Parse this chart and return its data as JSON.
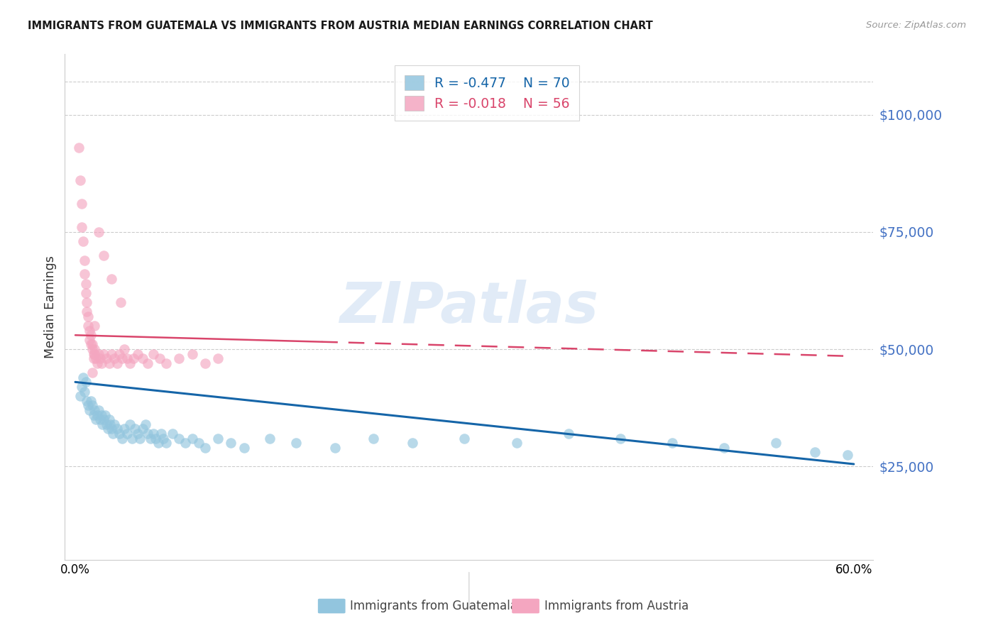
{
  "title": "IMMIGRANTS FROM GUATEMALA VS IMMIGRANTS FROM AUSTRIA MEDIAN EARNINGS CORRELATION CHART",
  "source": "Source: ZipAtlas.com",
  "ylabel": "Median Earnings",
  "ytick_vals": [
    25000,
    50000,
    75000,
    100000
  ],
  "ytick_labels": [
    "$25,000",
    "$50,000",
    "$75,000",
    "$100,000"
  ],
  "xlim": [
    -0.008,
    0.615
  ],
  "ylim": [
    5000,
    113000
  ],
  "watermark": "ZIPatlas",
  "legend_r1": "-0.477",
  "legend_n1": "70",
  "legend_r2": "-0.018",
  "legend_n2": "56",
  "color_guatemala": "#92c5de",
  "color_austria": "#f4a6c0",
  "color_trend_guatemala": "#1565a8",
  "color_trend_austria": "#d9456b",
  "label_guatemala": "Immigrants from Guatemala",
  "label_austria": "Immigrants from Austria",
  "guat_trend_x": [
    0.0,
    0.6
  ],
  "guat_trend_y": [
    43000,
    25500
  ],
  "aust_trend_x": [
    0.0,
    0.6
  ],
  "aust_trend_y": [
    53000,
    48500
  ],
  "background_color": "#ffffff",
  "grid_color": "#cccccc",
  "axis_label_color": "#4472c4",
  "title_color": "#1a1a1a",
  "scatter_alpha": 0.65,
  "scatter_size": 110,
  "guat_x": [
    0.004,
    0.005,
    0.006,
    0.007,
    0.008,
    0.009,
    0.01,
    0.011,
    0.012,
    0.013,
    0.014,
    0.015,
    0.016,
    0.017,
    0.018,
    0.019,
    0.02,
    0.021,
    0.022,
    0.023,
    0.024,
    0.025,
    0.026,
    0.027,
    0.028,
    0.029,
    0.03,
    0.032,
    0.034,
    0.036,
    0.038,
    0.04,
    0.042,
    0.044,
    0.046,
    0.048,
    0.05,
    0.052,
    0.054,
    0.056,
    0.058,
    0.06,
    0.062,
    0.064,
    0.066,
    0.068,
    0.07,
    0.075,
    0.08,
    0.085,
    0.09,
    0.095,
    0.1,
    0.11,
    0.12,
    0.13,
    0.15,
    0.17,
    0.2,
    0.23,
    0.26,
    0.3,
    0.34,
    0.38,
    0.42,
    0.46,
    0.5,
    0.54,
    0.57,
    0.595
  ],
  "guat_y": [
    40000,
    42000,
    44000,
    41000,
    43000,
    39000,
    38000,
    37000,
    39000,
    38000,
    36000,
    37000,
    35000,
    36000,
    37000,
    35000,
    36000,
    34000,
    35000,
    36000,
    34000,
    33000,
    35000,
    34000,
    33000,
    32000,
    34000,
    33000,
    32000,
    31000,
    33000,
    32000,
    34000,
    31000,
    33000,
    32000,
    31000,
    33000,
    34000,
    32000,
    31000,
    32000,
    31000,
    30000,
    32000,
    31000,
    30000,
    32000,
    31000,
    30000,
    31000,
    30000,
    29000,
    31000,
    30000,
    29000,
    31000,
    30000,
    29000,
    31000,
    30000,
    31000,
    30000,
    32000,
    31000,
    30000,
    29000,
    30000,
    28000,
    27500
  ],
  "aust_x": [
    0.003,
    0.004,
    0.005,
    0.005,
    0.006,
    0.007,
    0.007,
    0.008,
    0.008,
    0.009,
    0.009,
    0.01,
    0.01,
    0.011,
    0.011,
    0.012,
    0.012,
    0.013,
    0.013,
    0.014,
    0.014,
    0.015,
    0.015,
    0.016,
    0.017,
    0.018,
    0.019,
    0.02,
    0.022,
    0.024,
    0.026,
    0.028,
    0.03,
    0.032,
    0.034,
    0.036,
    0.038,
    0.04,
    0.042,
    0.045,
    0.048,
    0.052,
    0.056,
    0.06,
    0.065,
    0.07,
    0.08,
    0.09,
    0.1,
    0.11,
    0.018,
    0.022,
    0.028,
    0.035,
    0.015,
    0.013
  ],
  "aust_y": [
    93000,
    86000,
    81000,
    76000,
    73000,
    69000,
    66000,
    64000,
    62000,
    60000,
    58000,
    57000,
    55000,
    54000,
    52000,
    51000,
    53000,
    51000,
    50000,
    49000,
    48000,
    50000,
    49000,
    48000,
    47000,
    49000,
    48000,
    47000,
    49000,
    48000,
    47000,
    49000,
    48000,
    47000,
    49000,
    48000,
    50000,
    48000,
    47000,
    48000,
    49000,
    48000,
    47000,
    49000,
    48000,
    47000,
    48000,
    49000,
    47000,
    48000,
    75000,
    70000,
    65000,
    60000,
    55000,
    45000
  ]
}
